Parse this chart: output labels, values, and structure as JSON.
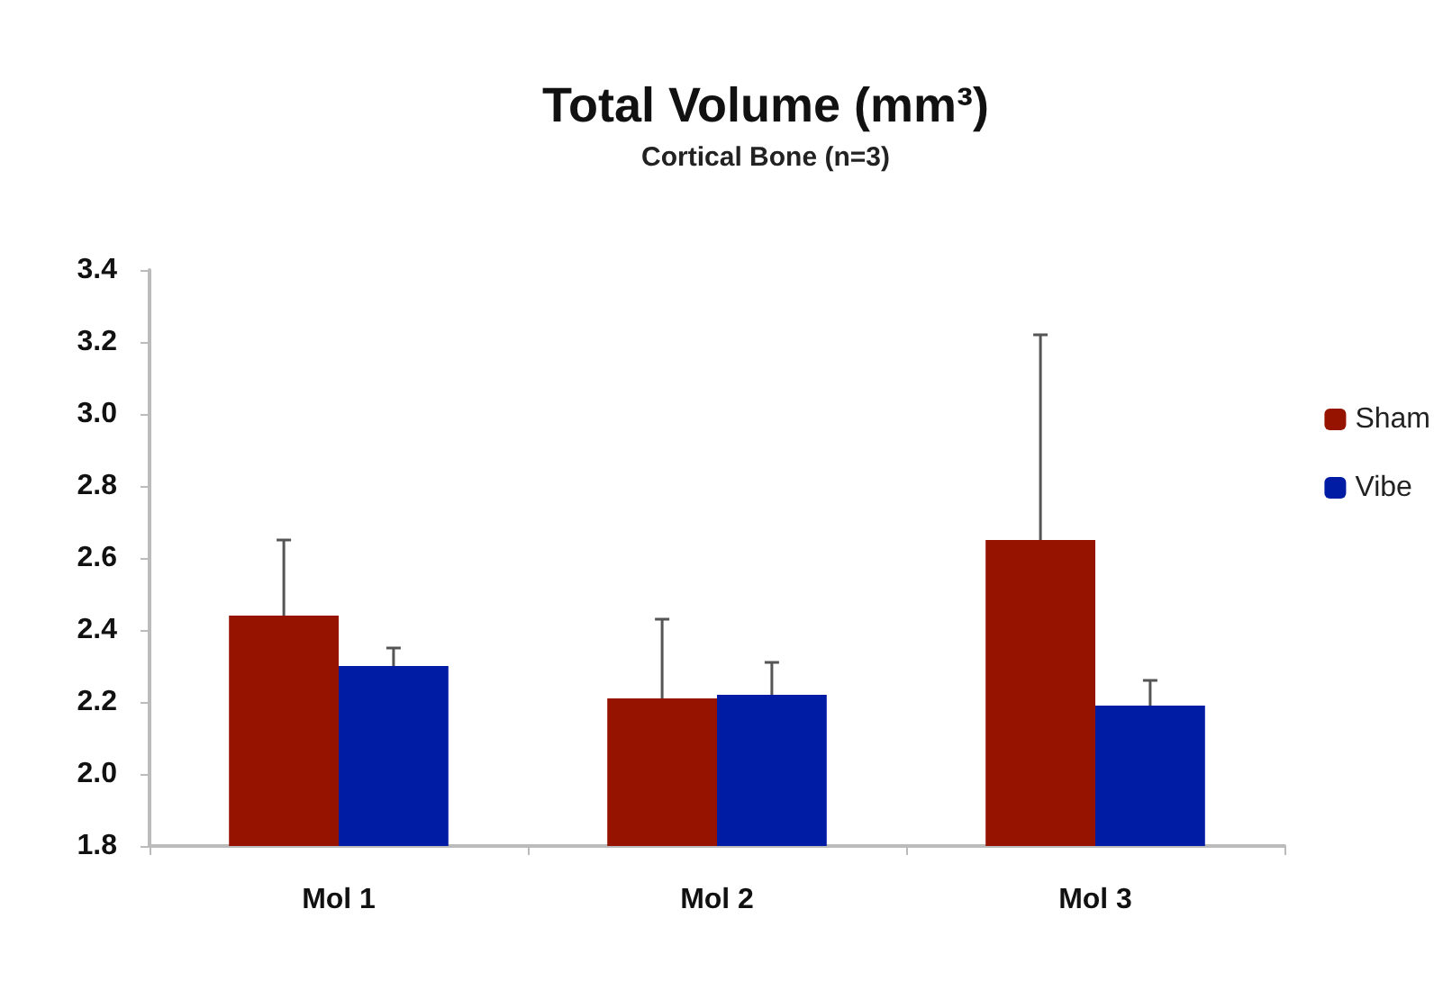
{
  "chart_data": {
    "type": "bar",
    "title": "Total Volume (mm³)",
    "subtitle": "Cortical Bone (n=3)",
    "categories": [
      "Mol 1",
      "Mol 2",
      "Mol 3"
    ],
    "series": [
      {
        "name": "Sham",
        "color": "#961300",
        "values": [
          2.44,
          2.21,
          2.65
        ],
        "errors": [
          [
            2.44,
            2.65
          ],
          [
            2.21,
            2.43
          ],
          [
            2.65,
            3.22
          ]
        ]
      },
      {
        "name": "Vibe",
        "color": "#001ca4",
        "values": [
          2.3,
          2.22,
          2.19
        ],
        "errors": [
          [
            2.3,
            2.35
          ],
          [
            2.22,
            2.31
          ],
          [
            2.19,
            2.26
          ]
        ]
      }
    ],
    "ylim": [
      1.8,
      3.4
    ],
    "yticks": [
      1.8,
      {
        "value": 2,
        "label": "2.0"
      },
      2.2,
      2.4,
      2.6,
      2.8,
      {
        "value": 3,
        "label": "3.0"
      },
      3.2,
      3.4
    ],
    "grid": false,
    "legend": "right"
  }
}
